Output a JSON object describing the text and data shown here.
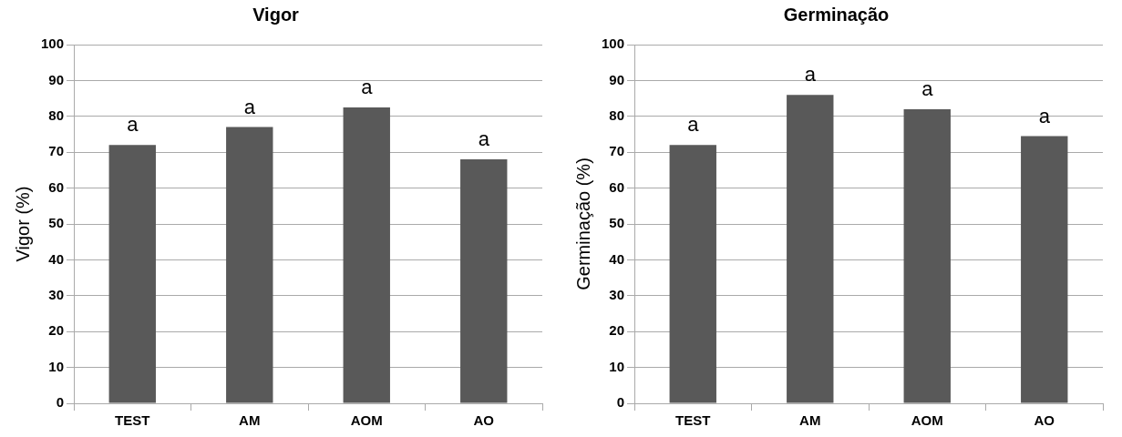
{
  "chart_data": [
    {
      "type": "bar",
      "title": "Vigor",
      "ylabel": "Vigor (%)",
      "categories": [
        "TEST",
        "AM",
        "AOM",
        "AO"
      ],
      "values": [
        72,
        77,
        82.5,
        68
      ],
      "color": "#595959",
      "ylim": [
        0,
        100
      ],
      "yticks": [
        0,
        10,
        20,
        30,
        40,
        50,
        60,
        70,
        80,
        90,
        100
      ],
      "grid": "y",
      "legend": false,
      "annotations": [
        {
          "text": "a",
          "x": "TEST",
          "y": 72
        },
        {
          "text": "a",
          "x": "AM",
          "y": 77
        },
        {
          "text": "a",
          "x": "AOM",
          "y": 82.5
        },
        {
          "text": "a",
          "x": "AO",
          "y": 68
        }
      ]
    },
    {
      "type": "bar",
      "title": "Germinação",
      "ylabel": "Germinação (%)",
      "categories": [
        "TEST",
        "AM",
        "AOM",
        "AO"
      ],
      "values": [
        72,
        86,
        82,
        74.5
      ],
      "color": "#595959",
      "ylim": [
        0,
        100
      ],
      "yticks": [
        0,
        10,
        20,
        30,
        40,
        50,
        60,
        70,
        80,
        90,
        100
      ],
      "grid": "y",
      "legend": false,
      "annotations": [
        {
          "text": "a",
          "x": "TEST",
          "y": 72
        },
        {
          "text": "a",
          "x": "AM",
          "y": 86
        },
        {
          "text": "a",
          "x": "AOM",
          "y": 82
        },
        {
          "text": "a",
          "x": "AO",
          "y": 74.5
        }
      ]
    }
  ]
}
